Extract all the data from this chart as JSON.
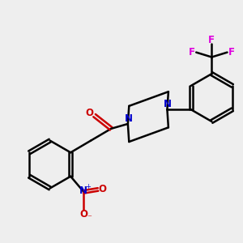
{
  "background_color": "#eeeeee",
  "bond_color": "#000000",
  "nitrogen_color": "#0000cc",
  "oxygen_color": "#cc0000",
  "fluorine_color": "#dd00dd",
  "line_width": 1.8,
  "dbo": 0.09,
  "figsize": [
    3.0,
    3.0
  ],
  "dpi": 100,
  "xlim": [
    0,
    10
  ],
  "ylim": [
    0,
    10
  ]
}
